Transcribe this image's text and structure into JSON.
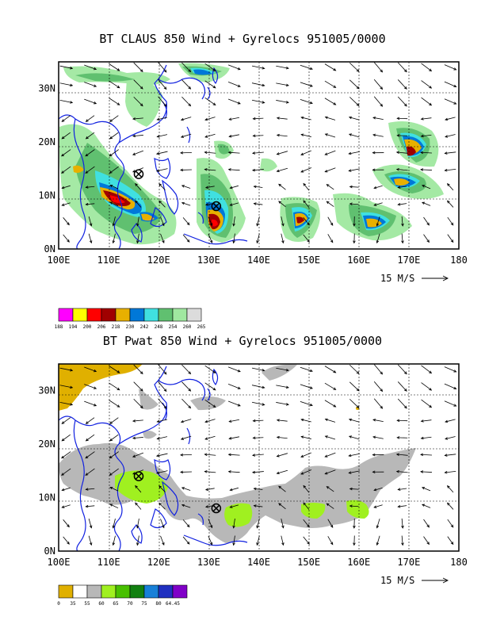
{
  "panels": [
    {
      "title": "BT CLAUS 850 Wind + Gyrelocs 951005/0000",
      "y_ticks": [
        "30N",
        "20N",
        "10N",
        "0N"
      ],
      "x_ticks": [
        "100E",
        "110E",
        "120E",
        "130E",
        "140E",
        "150E",
        "160E",
        "170E",
        "180"
      ],
      "wind_ref": "15 M/S",
      "legend": {
        "colors": [
          "#ff00ff",
          "#ffff00",
          "#ff0000",
          "#a00000",
          "#e8b000",
          "#0078d8",
          "#40e0e0",
          "#60c070",
          "#a0e8a0",
          "#dcdcdc"
        ],
        "labels": [
          "188",
          "194",
          "200",
          "206",
          "218",
          "230",
          "242",
          "248",
          "254",
          "260",
          "265"
        ]
      },
      "gyrelocs": [
        {
          "lon": 116,
          "lat": 14
        },
        {
          "lon": 131.5,
          "lat": 8
        }
      ]
    },
    {
      "title": "BT Pwat 850 Wind + Gyrelocs 951005/0000",
      "y_ticks": [
        "30N",
        "20N",
        "10N",
        "0N"
      ],
      "x_ticks": [
        "100E",
        "110E",
        "120E",
        "130E",
        "140E",
        "150E",
        "160E",
        "170E",
        "180"
      ],
      "wind_ref": "15 M/S",
      "legend": {
        "colors": [
          "#e0b000",
          "#ffffff",
          "#b8b8b8",
          "#a0f020",
          "#48c000",
          "#128010",
          "#1880d8",
          "#2030c0",
          "#8000c8"
        ],
        "labels": [
          "0",
          "35",
          "55",
          "60",
          "65",
          "70",
          "75",
          "80",
          "64.45"
        ]
      },
      "gyrelocs": [
        {
          "lon": 116,
          "lat": 14
        },
        {
          "lon": 131.5,
          "lat": 8
        }
      ]
    }
  ]
}
